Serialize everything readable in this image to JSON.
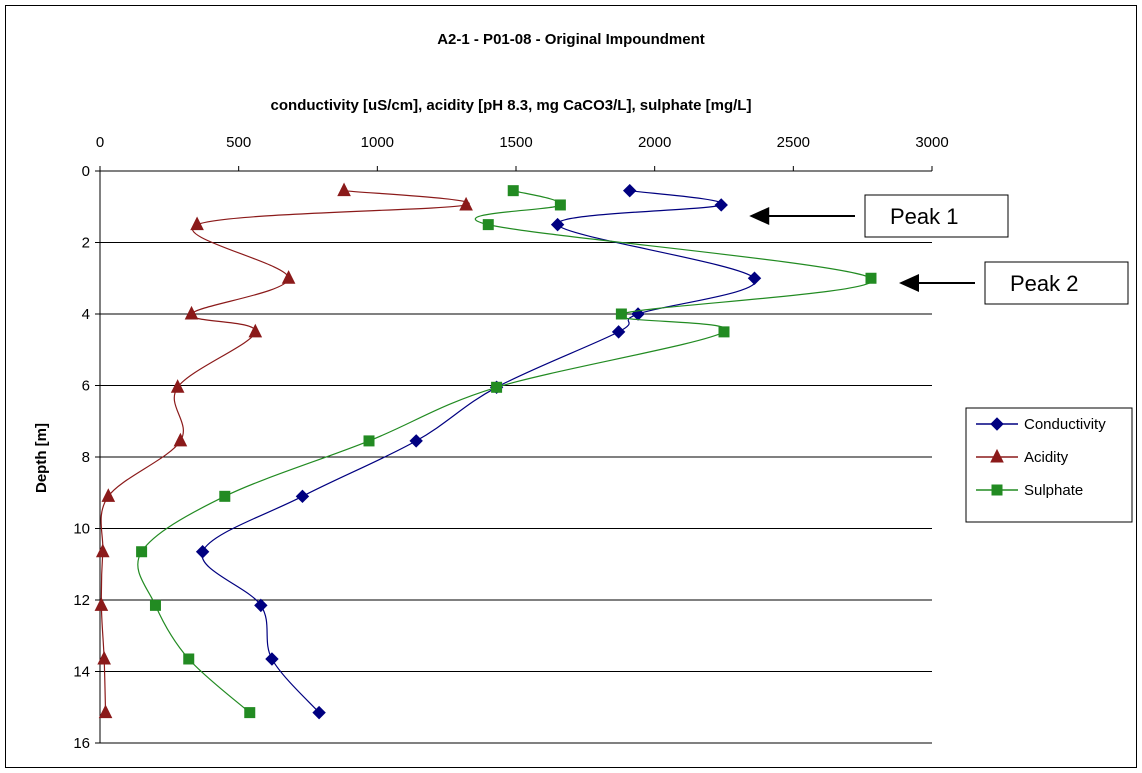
{
  "chart_data": {
    "type": "line",
    "title": "A2-1 - P01-08 - Original Impoundment",
    "xlabel": "conductivity [uS/cm], acidity [pH 8.3, mg CaCO3/L], sulphate [mg/L]",
    "ylabel": "Depth [m]",
    "x_axis_position": "top",
    "y_axis_inverted": true,
    "xlim": [
      0,
      3000
    ],
    "ylim": [
      0,
      16
    ],
    "x_ticks": [
      0,
      500,
      1000,
      1500,
      2000,
      2500,
      3000
    ],
    "y_ticks": [
      0,
      2,
      4,
      6,
      8,
      10,
      12,
      14,
      16
    ],
    "grid": "horizontal",
    "legend_position": "right",
    "series": [
      {
        "name": "Conductivity",
        "color": "#000080",
        "marker": "diamond",
        "points": [
          {
            "x": 1910,
            "y": 0.55
          },
          {
            "x": 2240,
            "y": 0.95
          },
          {
            "x": 1650,
            "y": 1.5
          },
          {
            "x": 2360,
            "y": 3.0
          },
          {
            "x": 1940,
            "y": 4.0
          },
          {
            "x": 1870,
            "y": 4.5
          },
          {
            "x": 1430,
            "y": 6.05
          },
          {
            "x": 1140,
            "y": 7.55
          },
          {
            "x": 730,
            "y": 9.1
          },
          {
            "x": 370,
            "y": 10.65
          },
          {
            "x": 580,
            "y": 12.15
          },
          {
            "x": 620,
            "y": 13.65
          },
          {
            "x": 790,
            "y": 15.15
          }
        ]
      },
      {
        "name": "Acidity",
        "color": "#8B1A1A",
        "marker": "triangle",
        "points": [
          {
            "x": 880,
            "y": 0.55
          },
          {
            "x": 1320,
            "y": 0.95
          },
          {
            "x": 350,
            "y": 1.5
          },
          {
            "x": 680,
            "y": 3.0
          },
          {
            "x": 330,
            "y": 4.0
          },
          {
            "x": 560,
            "y": 4.5
          },
          {
            "x": 280,
            "y": 6.05
          },
          {
            "x": 290,
            "y": 7.55
          },
          {
            "x": 30,
            "y": 9.1
          },
          {
            "x": 10,
            "y": 10.65
          },
          {
            "x": 5,
            "y": 12.15
          },
          {
            "x": 15,
            "y": 13.65
          },
          {
            "x": 20,
            "y": 15.15
          }
        ]
      },
      {
        "name": "Sulphate",
        "color": "#228B22",
        "marker": "square",
        "points": [
          {
            "x": 1490,
            "y": 0.55
          },
          {
            "x": 1660,
            "y": 0.95
          },
          {
            "x": 1400,
            "y": 1.5
          },
          {
            "x": 2780,
            "y": 3.0
          },
          {
            "x": 1880,
            "y": 4.0
          },
          {
            "x": 2250,
            "y": 4.5
          },
          {
            "x": 1430,
            "y": 6.05
          },
          {
            "x": 970,
            "y": 7.55
          },
          {
            "x": 450,
            "y": 9.1
          },
          {
            "x": 150,
            "y": 10.65
          },
          {
            "x": 200,
            "y": 12.15
          },
          {
            "x": 320,
            "y": 13.65
          },
          {
            "x": 540,
            "y": 15.15
          }
        ]
      }
    ],
    "annotations": [
      {
        "text": "Peak 1",
        "points_to": {
          "x": 2240,
          "y": 1.1
        }
      },
      {
        "text": "Peak 2",
        "points_to": {
          "x": 2780,
          "y": 3.15
        }
      }
    ]
  }
}
